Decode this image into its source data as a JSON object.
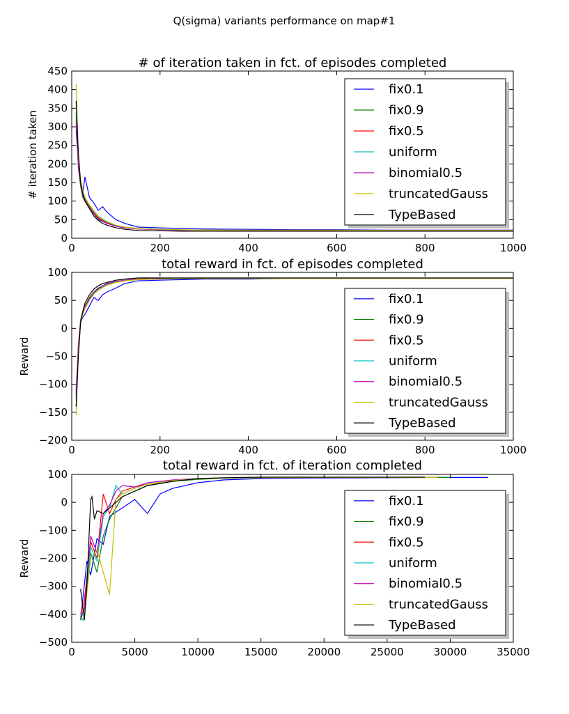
{
  "figure": {
    "suptitle": "Q(sigma) variants performance on map#1"
  },
  "legend_entries": [
    {
      "name": "fix0.1",
      "color": "#0000ff"
    },
    {
      "name": "fix0.9",
      "color": "#008000"
    },
    {
      "name": "fix0.5",
      "color": "#ff0000"
    },
    {
      "name": "uniform",
      "color": "#00bfbf"
    },
    {
      "name": "binomial0.5",
      "color": "#bf00bf"
    },
    {
      "name": "truncatedGauss",
      "color": "#bfbf00"
    },
    {
      "name": "TypeBased",
      "color": "#000000"
    }
  ],
  "chart_data": [
    {
      "type": "line",
      "title": "# of iteration taken in fct. of episodes completed",
      "xlabel": "",
      "ylabel": "# iteration taken",
      "xlim": [
        0,
        1000
      ],
      "ylim": [
        0,
        450
      ],
      "xticks": [
        "0",
        "200",
        "400",
        "600",
        "800",
        "1000"
      ],
      "yticks": [
        "0",
        "50",
        "100",
        "150",
        "200",
        "250",
        "300",
        "350",
        "400",
        "450"
      ],
      "legend": "top-right",
      "grid": false,
      "series": [
        {
          "name": "fix0.1",
          "x": [
            10,
            15,
            20,
            25,
            30,
            40,
            50,
            60,
            70,
            80,
            100,
            120,
            150,
            200,
            250,
            300,
            400,
            500,
            600,
            700,
            800,
            900,
            1000
          ],
          "y": [
            290,
            200,
            150,
            120,
            165,
            110,
            95,
            75,
            85,
            70,
            50,
            40,
            30,
            28,
            26,
            25,
            24,
            23,
            23,
            22,
            22,
            22,
            22
          ]
        },
        {
          "name": "fix0.9",
          "x": [
            10,
            15,
            20,
            25,
            30,
            40,
            50,
            60,
            70,
            80,
            100,
            120,
            150,
            200,
            250,
            300,
            400,
            500,
            600,
            700,
            800,
            900,
            1000
          ],
          "y": [
            320,
            190,
            140,
            110,
            100,
            80,
            65,
            50,
            45,
            40,
            32,
            28,
            25,
            23,
            22,
            22,
            21,
            21,
            21,
            21,
            21,
            21,
            21
          ]
        },
        {
          "name": "fix0.5",
          "x": [
            10,
            15,
            20,
            25,
            30,
            40,
            50,
            60,
            70,
            80,
            100,
            120,
            150,
            200,
            250,
            300,
            400,
            500,
            600,
            700,
            800,
            900,
            1000
          ],
          "y": [
            330,
            200,
            150,
            120,
            105,
            85,
            70,
            55,
            48,
            42,
            33,
            28,
            25,
            23,
            22,
            22,
            21,
            21,
            21,
            21,
            21,
            21,
            21
          ]
        },
        {
          "name": "uniform",
          "x": [
            10,
            15,
            20,
            25,
            30,
            40,
            50,
            60,
            70,
            80,
            100,
            120,
            150,
            200,
            250,
            300,
            400,
            500,
            600,
            700,
            800,
            900,
            1000
          ],
          "y": [
            340,
            210,
            155,
            125,
            108,
            88,
            72,
            58,
            50,
            44,
            34,
            29,
            26,
            23,
            22,
            22,
            21,
            21,
            21,
            21,
            21,
            21,
            21
          ]
        },
        {
          "name": "binomial0.5",
          "x": [
            10,
            15,
            20,
            25,
            30,
            40,
            50,
            60,
            70,
            80,
            100,
            120,
            150,
            200,
            250,
            300,
            400,
            500,
            600,
            700,
            800,
            900,
            1000
          ],
          "y": [
            310,
            195,
            145,
            115,
            100,
            82,
            66,
            52,
            46,
            40,
            32,
            28,
            25,
            23,
            22,
            22,
            21,
            21,
            21,
            21,
            21,
            21,
            21
          ]
        },
        {
          "name": "truncatedGauss",
          "x": [
            10,
            15,
            20,
            25,
            30,
            40,
            50,
            60,
            70,
            80,
            100,
            120,
            150,
            200,
            250,
            300,
            400,
            500,
            600,
            700,
            800,
            900,
            1000
          ],
          "y": [
            415,
            220,
            160,
            130,
            110,
            90,
            74,
            60,
            52,
            45,
            35,
            30,
            26,
            24,
            23,
            22,
            22,
            22,
            22,
            21,
            21,
            21,
            21
          ]
        },
        {
          "name": "TypeBased",
          "x": [
            10,
            15,
            20,
            25,
            30,
            40,
            50,
            60,
            70,
            80,
            100,
            120,
            150,
            200,
            250,
            300,
            400,
            500,
            600,
            700,
            800,
            900,
            1000
          ],
          "y": [
            370,
            230,
            150,
            120,
            100,
            80,
            60,
            48,
            40,
            35,
            28,
            24,
            21,
            20,
            19,
            19,
            19,
            19,
            19,
            19,
            19,
            19,
            19
          ]
        }
      ]
    },
    {
      "type": "line",
      "title": "total reward in fct. of episodes completed",
      "xlabel": "",
      "ylabel": "Reward",
      "xlim": [
        0,
        1000
      ],
      "ylim": [
        -200,
        100
      ],
      "xticks": [
        "0",
        "200",
        "400",
        "600",
        "800",
        "1000"
      ],
      "yticks": [
        "−200",
        "−150",
        "−100",
        "−50",
        "0",
        "50",
        "100"
      ],
      "legend": "bottom-right",
      "grid": false,
      "series": [
        {
          "name": "fix0.1",
          "x": [
            10,
            15,
            20,
            25,
            30,
            40,
            50,
            60,
            70,
            80,
            100,
            120,
            150,
            200,
            250,
            300,
            400,
            500,
            600,
            700,
            800,
            900,
            1000
          ],
          "y": [
            -110,
            -40,
            10,
            20,
            25,
            40,
            55,
            50,
            60,
            65,
            72,
            80,
            85,
            86,
            87,
            88,
            88,
            89,
            89,
            89,
            89,
            89,
            89
          ]
        },
        {
          "name": "fix0.9",
          "x": [
            10,
            15,
            20,
            25,
            30,
            40,
            50,
            60,
            70,
            80,
            100,
            120,
            150,
            200,
            250,
            300,
            400,
            500,
            600,
            700,
            800,
            900,
            1000
          ],
          "y": [
            -120,
            -30,
            15,
            30,
            40,
            55,
            65,
            72,
            76,
            80,
            84,
            86,
            88,
            89,
            89,
            89,
            89,
            89,
            89,
            89,
            89,
            89,
            89
          ]
        },
        {
          "name": "fix0.5",
          "x": [
            10,
            15,
            20,
            25,
            30,
            40,
            50,
            60,
            70,
            80,
            100,
            120,
            150,
            200,
            250,
            300,
            400,
            500,
            600,
            700,
            800,
            900,
            1000
          ],
          "y": [
            -125,
            -35,
            12,
            28,
            38,
            52,
            63,
            70,
            75,
            79,
            83,
            86,
            88,
            89,
            89,
            89,
            89,
            89,
            89,
            89,
            89,
            89,
            89
          ]
        },
        {
          "name": "uniform",
          "x": [
            10,
            15,
            20,
            25,
            30,
            40,
            50,
            60,
            70,
            80,
            100,
            120,
            150,
            200,
            250,
            300,
            400,
            500,
            600,
            700,
            800,
            900,
            1000
          ],
          "y": [
            -130,
            -40,
            10,
            25,
            36,
            50,
            62,
            69,
            74,
            78,
            83,
            86,
            88,
            89,
            89,
            89,
            89,
            89,
            89,
            89,
            89,
            89,
            89
          ]
        },
        {
          "name": "binomial0.5",
          "x": [
            10,
            15,
            20,
            25,
            30,
            40,
            50,
            60,
            70,
            80,
            100,
            120,
            150,
            200,
            250,
            300,
            400,
            500,
            600,
            700,
            800,
            900,
            1000
          ],
          "y": [
            -115,
            -32,
            14,
            29,
            39,
            53,
            64,
            71,
            76,
            80,
            84,
            86,
            88,
            89,
            89,
            89,
            89,
            89,
            89,
            89,
            89,
            89,
            89
          ]
        },
        {
          "name": "truncatedGauss",
          "x": [
            10,
            15,
            20,
            25,
            30,
            40,
            50,
            60,
            70,
            80,
            100,
            120,
            150,
            200,
            250,
            300,
            400,
            500,
            600,
            700,
            800,
            900,
            1000
          ],
          "y": [
            -155,
            -45,
            8,
            24,
            35,
            50,
            61,
            68,
            73,
            77,
            82,
            85,
            87,
            88,
            89,
            89,
            89,
            89,
            89,
            89,
            89,
            89,
            89
          ]
        },
        {
          "name": "TypeBased",
          "x": [
            10,
            15,
            20,
            25,
            30,
            40,
            50,
            60,
            70,
            80,
            100,
            120,
            150,
            200,
            250,
            300,
            400,
            500,
            600,
            700,
            800,
            900,
            1000
          ],
          "y": [
            -140,
            -50,
            10,
            30,
            45,
            60,
            70,
            76,
            80,
            82,
            86,
            88,
            90,
            90,
            90,
            90,
            90,
            90,
            90,
            90,
            90,
            90,
            90
          ]
        }
      ]
    },
    {
      "type": "line",
      "title": "total reward in fct. of iteration completed",
      "xlabel": "",
      "ylabel": "Reward",
      "xlim": [
        0,
        35000
      ],
      "ylim": [
        -500,
        100
      ],
      "xticks": [
        "0",
        "5000",
        "10000",
        "15000",
        "20000",
        "25000",
        "30000",
        "35000"
      ],
      "yticks": [
        "−500",
        "−400",
        "−300",
        "−200",
        "−100",
        "0",
        "100"
      ],
      "legend": "bottom-right",
      "grid": false,
      "series": [
        {
          "name": "fix0.1",
          "x": [
            700,
            1200,
            1500,
            2000,
            2500,
            3000,
            4000,
            5000,
            6000,
            7000,
            8000,
            10000,
            12000,
            15000,
            20000,
            25000,
            30000,
            33000
          ],
          "y": [
            -420,
            -210,
            -260,
            -130,
            -150,
            -50,
            -20,
            10,
            -40,
            30,
            50,
            70,
            80,
            85,
            87,
            88,
            89,
            89
          ]
        },
        {
          "name": "fix0.9",
          "x": [
            700,
            1000,
            1500,
            2000,
            2500,
            3000,
            3500,
            4000,
            5000,
            6000,
            8000,
            10000,
            12000,
            15000,
            20000,
            25000,
            30000
          ],
          "y": [
            -420,
            -380,
            -180,
            -250,
            -120,
            -60,
            -20,
            20,
            40,
            60,
            75,
            82,
            86,
            88,
            89,
            89,
            89
          ]
        },
        {
          "name": "fix0.5",
          "x": [
            700,
            1000,
            1500,
            2000,
            2500,
            3000,
            3500,
            4000,
            5000,
            6000,
            8000,
            10000,
            12000,
            15000,
            20000,
            25000,
            29000
          ],
          "y": [
            -400,
            -350,
            -140,
            -200,
            30,
            -40,
            10,
            40,
            55,
            65,
            78,
            84,
            87,
            88,
            89,
            89,
            89
          ]
        },
        {
          "name": "uniform",
          "x": [
            700,
            1000,
            1500,
            2000,
            2500,
            3000,
            3500,
            4000,
            5000,
            6000,
            8000,
            10000,
            12000,
            15000,
            20000,
            25000,
            29000
          ],
          "y": [
            -420,
            -420,
            -160,
            -210,
            -50,
            -20,
            60,
            30,
            50,
            65,
            78,
            84,
            87,
            88,
            89,
            89,
            89
          ]
        },
        {
          "name": "binomial0.5",
          "x": [
            700,
            1000,
            1500,
            2000,
            2500,
            3000,
            3500,
            4000,
            5000,
            6000,
            8000,
            10000,
            12000,
            15000,
            20000,
            25000,
            29000
          ],
          "y": [
            -400,
            -380,
            -120,
            -180,
            -40,
            -10,
            40,
            60,
            55,
            70,
            80,
            85,
            87,
            88,
            89,
            89,
            89
          ]
        },
        {
          "name": "truncatedGauss",
          "x": [
            700,
            1000,
            1500,
            2000,
            2500,
            3000,
            3500,
            4000,
            5000,
            6000,
            8000,
            10000,
            12000,
            15000,
            20000,
            25000,
            29000
          ],
          "y": [
            -420,
            -410,
            -200,
            -170,
            -250,
            -330,
            10,
            30,
            50,
            65,
            78,
            84,
            87,
            88,
            89,
            89,
            89
          ]
        },
        {
          "name": "TypeBased",
          "x": [
            700,
            1000,
            1200,
            1500,
            1600,
            1800,
            2000,
            2500,
            3000,
            4000,
            5000,
            6000,
            8000,
            10000,
            12000,
            15000,
            20000,
            25000,
            28000
          ],
          "y": [
            -310,
            -420,
            -300,
            10,
            20,
            -60,
            -30,
            -40,
            -20,
            20,
            40,
            60,
            75,
            85,
            88,
            90,
            90,
            90,
            90
          ]
        }
      ]
    }
  ]
}
